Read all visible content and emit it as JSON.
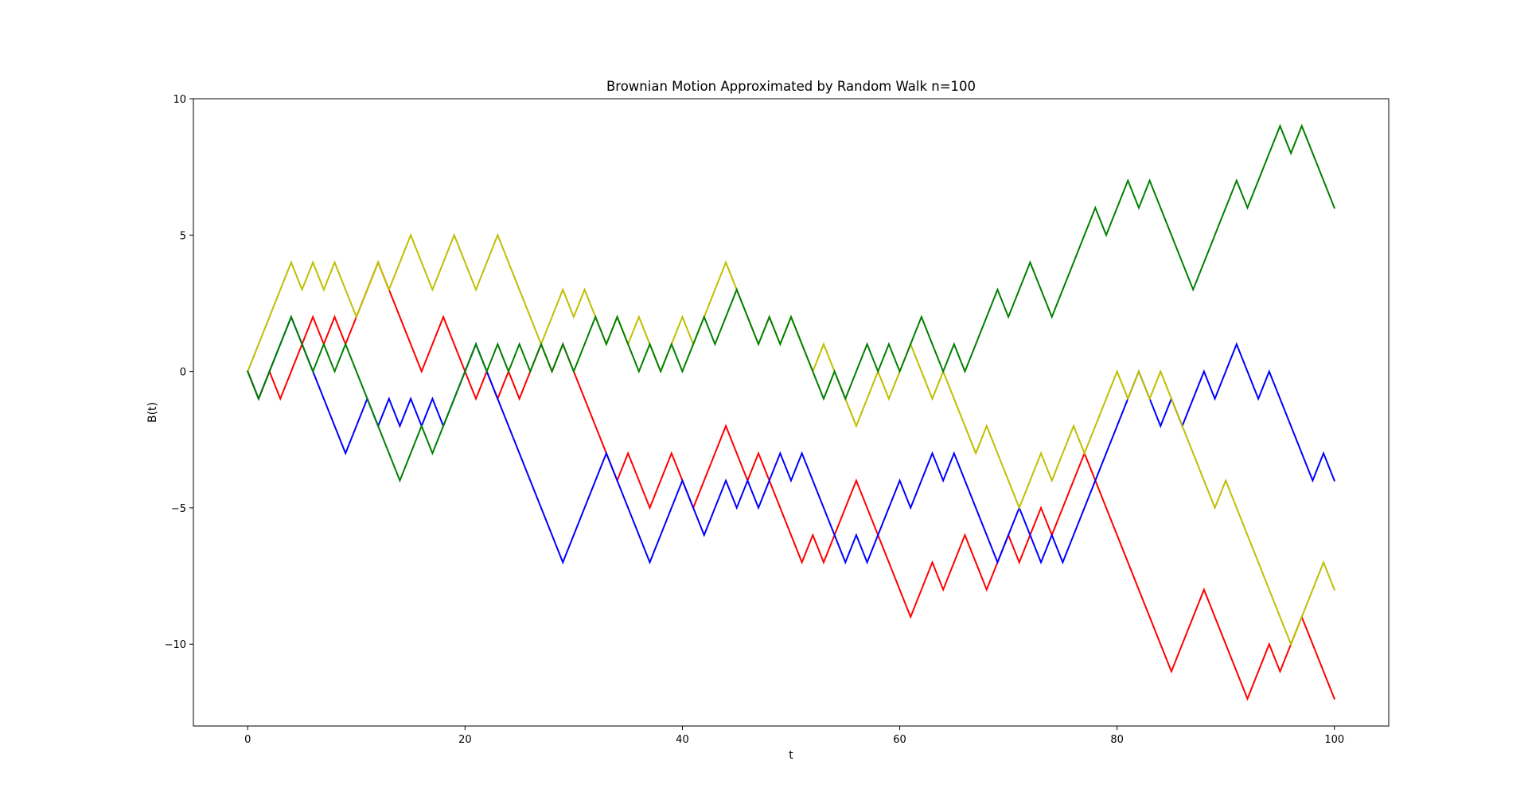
{
  "chart_data": {
    "type": "line",
    "title": "Brownian Motion Approximated by Random Walk n=100",
    "xlabel": "t",
    "ylabel": "B(t)",
    "xlim": [
      -5,
      105
    ],
    "ylim": [
      -13,
      10
    ],
    "xticks": [
      0,
      20,
      40,
      60,
      80,
      100
    ],
    "xtick_labels": [
      "0",
      "20",
      "40",
      "60",
      "80",
      "100"
    ],
    "yticks": [
      -10,
      -5,
      0,
      5,
      10
    ],
    "ytick_labels": [
      "−10",
      "−5",
      "0",
      "5",
      "10"
    ],
    "grid": false,
    "legend": false,
    "series": [
      {
        "color": "#ff0000",
        "x": [
          0,
          1,
          2,
          3,
          4,
          5,
          6,
          7,
          8,
          9,
          10,
          11,
          12,
          13,
          14,
          15,
          16,
          17,
          18,
          19,
          20,
          21,
          22,
          23,
          24,
          25,
          26,
          27,
          28,
          29,
          30,
          31,
          32,
          33,
          34,
          35,
          36,
          37,
          38,
          39,
          40,
          41,
          42,
          43,
          44,
          45,
          46,
          47,
          48,
          49,
          50,
          51,
          52,
          53,
          54,
          55,
          56,
          57,
          58,
          59,
          60,
          61,
          62,
          63,
          64,
          65,
          66,
          67,
          68,
          69,
          70,
          71,
          72,
          73,
          74,
          75,
          76,
          77,
          78,
          79,
          80,
          81,
          82,
          83,
          84,
          85,
          86,
          87,
          88,
          89,
          90,
          91,
          92,
          93,
          94,
          95,
          96,
          97,
          98,
          99,
          100
        ],
        "y": [
          0,
          -1,
          0,
          -1,
          0,
          1,
          2,
          1,
          2,
          1,
          2,
          3,
          4,
          3,
          2,
          1,
          0,
          1,
          2,
          1,
          0,
          -1,
          0,
          -1,
          0,
          -1,
          0,
          1,
          0,
          1,
          0,
          -1,
          -2,
          -3,
          -4,
          -3,
          -4,
          -5,
          -4,
          -3,
          -4,
          -5,
          -4,
          -3,
          -2,
          -3,
          -4,
          -3,
          -4,
          -5,
          -6,
          -7,
          -6,
          -7,
          -6,
          -5,
          -4,
          -5,
          -6,
          -7,
          -8,
          -9,
          -8,
          -7,
          -8,
          -7,
          -6,
          -7,
          -8,
          -7,
          -6,
          -7,
          -6,
          -5,
          -6,
          -5,
          -4,
          -3,
          -4,
          -5,
          -6,
          -7,
          -8,
          -9,
          -10,
          -11,
          -10,
          -9,
          -8,
          -9,
          -10,
          -11,
          -12,
          -11,
          -10,
          -11,
          -10,
          -9,
          -10,
          -11,
          -12
        ]
      },
      {
        "color": "#0000ff",
        "x": [
          0,
          1,
          2,
          3,
          4,
          5,
          6,
          7,
          8,
          9,
          10,
          11,
          12,
          13,
          14,
          15,
          16,
          17,
          18,
          19,
          20,
          21,
          22,
          23,
          24,
          25,
          26,
          27,
          28,
          29,
          30,
          31,
          32,
          33,
          34,
          35,
          36,
          37,
          38,
          39,
          40,
          41,
          42,
          43,
          44,
          45,
          46,
          47,
          48,
          49,
          50,
          51,
          52,
          53,
          54,
          55,
          56,
          57,
          58,
          59,
          60,
          61,
          62,
          63,
          64,
          65,
          66,
          67,
          68,
          69,
          70,
          71,
          72,
          73,
          74,
          75,
          76,
          77,
          78,
          79,
          80,
          81,
          82,
          83,
          84,
          85,
          86,
          87,
          88,
          89,
          90,
          91,
          92,
          93,
          94,
          95,
          96,
          97,
          98,
          99,
          100
        ],
        "y": [
          0,
          -1,
          0,
          1,
          2,
          1,
          0,
          -1,
          -2,
          -3,
          -2,
          -1,
          -2,
          -1,
          -2,
          -1,
          -2,
          -1,
          -2,
          -1,
          0,
          1,
          0,
          -1,
          -2,
          -3,
          -4,
          -5,
          -6,
          -7,
          -6,
          -5,
          -4,
          -3,
          -4,
          -5,
          -6,
          -7,
          -6,
          -5,
          -4,
          -5,
          -6,
          -5,
          -4,
          -5,
          -4,
          -5,
          -4,
          -3,
          -4,
          -3,
          -4,
          -5,
          -6,
          -7,
          -6,
          -7,
          -6,
          -5,
          -4,
          -5,
          -4,
          -3,
          -4,
          -3,
          -4,
          -5,
          -6,
          -7,
          -6,
          -5,
          -6,
          -7,
          -6,
          -7,
          -6,
          -5,
          -4,
          -3,
          -2,
          -1,
          0,
          -1,
          -2,
          -1,
          -2,
          -1,
          0,
          -1,
          0,
          1,
          0,
          -1,
          0,
          -1,
          -2,
          -3,
          -4,
          -3,
          -4
        ]
      },
      {
        "color": "#bfbf00",
        "x": [
          0,
          1,
          2,
          3,
          4,
          5,
          6,
          7,
          8,
          9,
          10,
          11,
          12,
          13,
          14,
          15,
          16,
          17,
          18,
          19,
          20,
          21,
          22,
          23,
          24,
          25,
          26,
          27,
          28,
          29,
          30,
          31,
          32,
          33,
          34,
          35,
          36,
          37,
          38,
          39,
          40,
          41,
          42,
          43,
          44,
          45,
          46,
          47,
          48,
          49,
          50,
          51,
          52,
          53,
          54,
          55,
          56,
          57,
          58,
          59,
          60,
          61,
          62,
          63,
          64,
          65,
          66,
          67,
          68,
          69,
          70,
          71,
          72,
          73,
          74,
          75,
          76,
          77,
          78,
          79,
          80,
          81,
          82,
          83,
          84,
          85,
          86,
          87,
          88,
          89,
          90,
          91,
          92,
          93,
          94,
          95,
          96,
          97,
          98,
          99,
          100
        ],
        "y": [
          0,
          1,
          2,
          3,
          4,
          3,
          4,
          3,
          4,
          3,
          2,
          3,
          4,
          3,
          4,
          5,
          4,
          3,
          4,
          5,
          4,
          3,
          4,
          5,
          4,
          3,
          2,
          1,
          2,
          3,
          2,
          3,
          2,
          1,
          2,
          1,
          2,
          1,
          0,
          1,
          2,
          1,
          2,
          3,
          4,
          3,
          2,
          1,
          2,
          1,
          2,
          1,
          0,
          1,
          0,
          -1,
          -2,
          -1,
          0,
          -1,
          0,
          1,
          0,
          -1,
          0,
          -1,
          -2,
          -3,
          -2,
          -3,
          -4,
          -5,
          -4,
          -3,
          -4,
          -3,
          -2,
          -3,
          -2,
          -1,
          0,
          -1,
          0,
          -1,
          0,
          -1,
          -2,
          -3,
          -4,
          -5,
          -4,
          -5,
          -6,
          -7,
          -8,
          -9,
          -10,
          -9,
          -8,
          -7,
          -8
        ]
      },
      {
        "color": "#008000",
        "x": [
          0,
          1,
          2,
          3,
          4,
          5,
          6,
          7,
          8,
          9,
          10,
          11,
          12,
          13,
          14,
          15,
          16,
          17,
          18,
          19,
          20,
          21,
          22,
          23,
          24,
          25,
          26,
          27,
          28,
          29,
          30,
          31,
          32,
          33,
          34,
          35,
          36,
          37,
          38,
          39,
          40,
          41,
          42,
          43,
          44,
          45,
          46,
          47,
          48,
          49,
          50,
          51,
          52,
          53,
          54,
          55,
          56,
          57,
          58,
          59,
          60,
          61,
          62,
          63,
          64,
          65,
          66,
          67,
          68,
          69,
          70,
          71,
          72,
          73,
          74,
          75,
          76,
          77,
          78,
          79,
          80,
          81,
          82,
          83,
          84,
          85,
          86,
          87,
          88,
          89,
          90,
          91,
          92,
          93,
          94,
          95,
          96,
          97,
          98,
          99,
          100
        ],
        "y": [
          0,
          -1,
          0,
          1,
          2,
          1,
          0,
          1,
          0,
          1,
          0,
          -1,
          -2,
          -3,
          -4,
          -3,
          -2,
          -3,
          -2,
          -1,
          0,
          1,
          0,
          1,
          0,
          1,
          0,
          1,
          0,
          1,
          0,
          1,
          2,
          1,
          2,
          1,
          0,
          1,
          0,
          1,
          0,
          1,
          2,
          1,
          2,
          3,
          2,
          1,
          2,
          1,
          2,
          1,
          0,
          -1,
          0,
          -1,
          0,
          1,
          0,
          1,
          0,
          1,
          2,
          1,
          0,
          1,
          0,
          1,
          2,
          3,
          2,
          3,
          4,
          3,
          2,
          3,
          4,
          5,
          6,
          5,
          6,
          7,
          6,
          7,
          6,
          5,
          4,
          3,
          4,
          5,
          6,
          7,
          6,
          7,
          8,
          9,
          8,
          9,
          8,
          7,
          6
        ]
      }
    ]
  }
}
